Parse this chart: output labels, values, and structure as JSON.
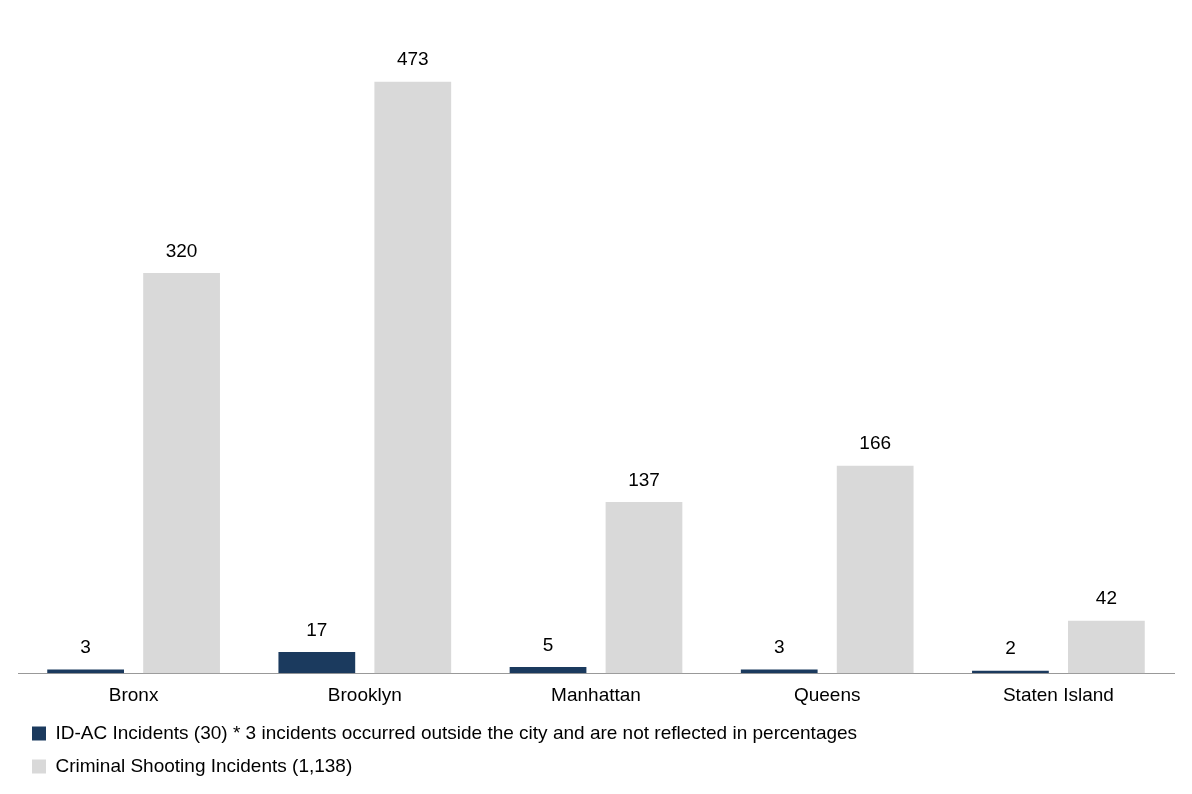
{
  "chart_data": {
    "type": "bar",
    "categories": [
      "Bronx",
      "Brooklyn",
      "Manhattan",
      "Queens",
      "Staten Island"
    ],
    "series": [
      {
        "name": "ID-AC Incidents (30) * 3 incidents occurred outside the city and are not reflected in percentages",
        "color": "#1b3a5e",
        "values": [
          3,
          17,
          5,
          3,
          2
        ]
      },
      {
        "name": "Criminal Shooting Incidents (1,138)",
        "color": "#d9d9d9",
        "values": [
          320,
          473,
          137,
          166,
          42
        ]
      }
    ],
    "data_labels": true,
    "grid": false,
    "legend": "bottom"
  }
}
